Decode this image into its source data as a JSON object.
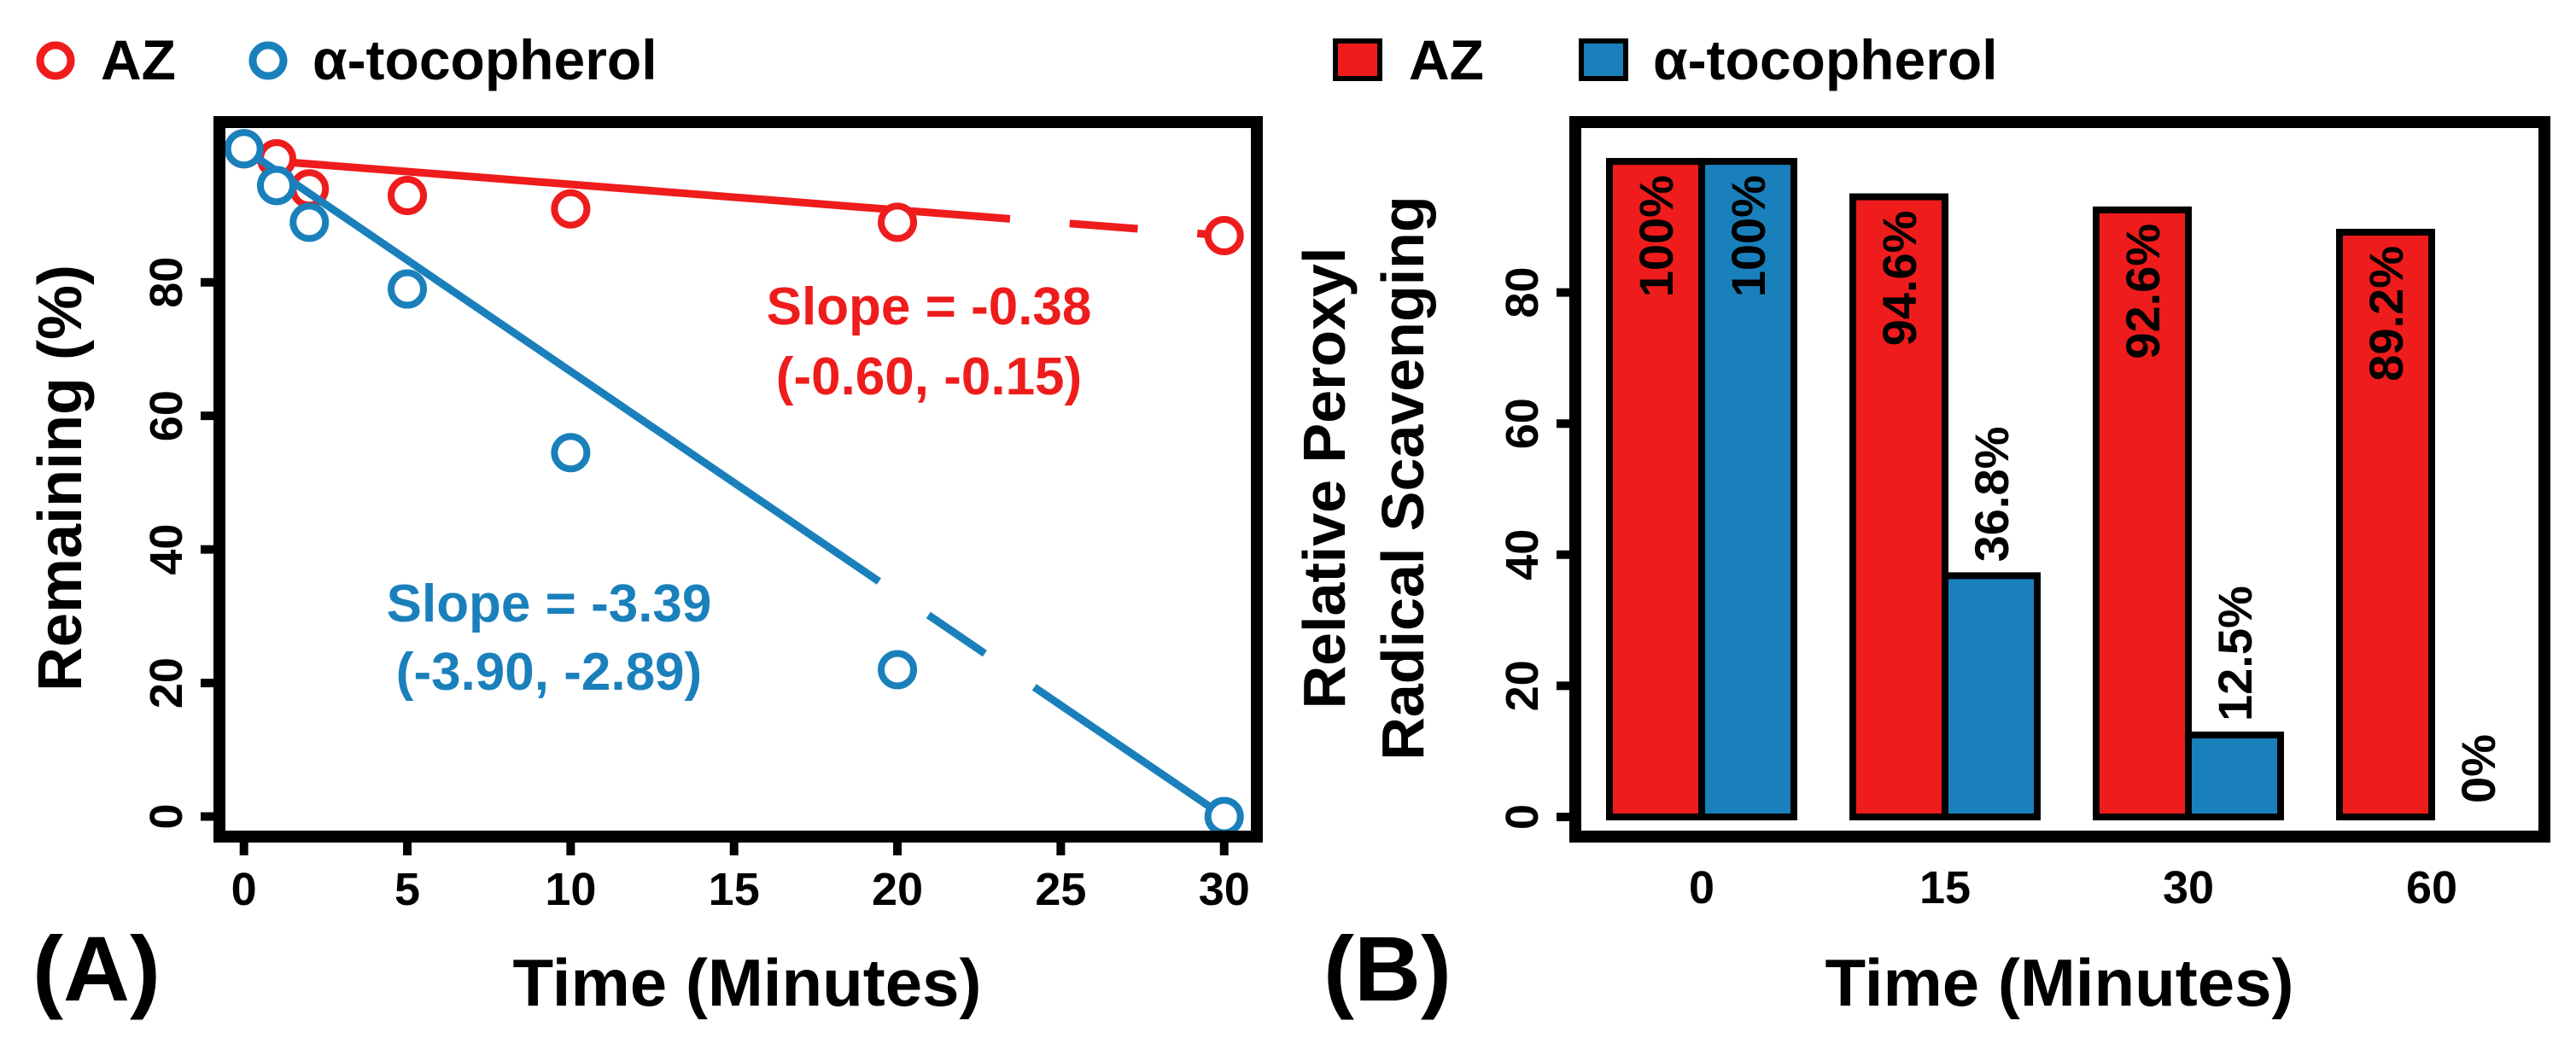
{
  "colors": {
    "az": "#ee1c1c",
    "toco": "#1a80bb",
    "frame": "#000000",
    "background": "#ffffff"
  },
  "chart_data": [
    {
      "type": "line",
      "panel_label": "(A)",
      "title": "",
      "xlabel": "Time (Minutes)",
      "ylabel": "Remaining (%)",
      "xlim": [
        -0.75,
        31
      ],
      "ylim": [
        -3,
        104
      ],
      "x_ticks": [
        0,
        5,
        10,
        15,
        20,
        25,
        30
      ],
      "y_ticks": [
        0,
        20,
        40,
        60,
        80
      ],
      "legend": {
        "placement": "top-left",
        "entries": [
          "AZ",
          "α-tocopherol"
        ]
      },
      "series": [
        {
          "name": "AZ",
          "color": "#ee1c1c",
          "x": [
            0,
            1,
            2,
            5,
            10,
            20,
            30
          ],
          "y": [
            100,
            98.5,
            94,
            93,
            91,
            89,
            87
          ],
          "fit": {
            "x": [
              0,
              30
            ],
            "y": [
              98.5,
              87
            ]
          }
        },
        {
          "name": "α-tocopherol",
          "color": "#1a80bb",
          "x": [
            0,
            1,
            2,
            5,
            10,
            20,
            30
          ],
          "y": [
            100,
            94.5,
            89,
            79,
            54.5,
            22,
            0
          ],
          "fit": {
            "x": [
              0,
              30
            ],
            "y": [
              100,
              0
            ]
          }
        }
      ],
      "annotations": [
        {
          "series": "AZ",
          "text": "Slope = -0.38",
          "ci": "(-0.60, -0.15)"
        },
        {
          "series": "α-tocopherol",
          "text": "Slope = -3.39",
          "ci": "(-3.90, -2.89)"
        }
      ]
    },
    {
      "type": "bar",
      "panel_label": "(B)",
      "title": "",
      "xlabel": "Time (Minutes)",
      "ylabel": [
        "Relative Peroxyl",
        "Radical Scavenging"
      ],
      "ylim": [
        -3,
        106
      ],
      "y_ticks": [
        0,
        20,
        40,
        60,
        80
      ],
      "categories": [
        "0",
        "15",
        "30",
        "60"
      ],
      "legend": {
        "placement": "top-center",
        "entries": [
          "AZ",
          "α-tocopherol"
        ]
      },
      "series": [
        {
          "name": "AZ",
          "color": "#ee1c1c",
          "values": [
            100,
            94.6,
            92.6,
            89.2
          ],
          "labels": [
            "100%",
            "94.6%",
            "92.6%",
            "89.2%"
          ]
        },
        {
          "name": "α-tocopherol",
          "color": "#1a80bb",
          "values": [
            100,
            36.8,
            12.5,
            0
          ],
          "labels": [
            "100%",
            "36.8%",
            "12.5%",
            "0%"
          ]
        }
      ]
    }
  ]
}
